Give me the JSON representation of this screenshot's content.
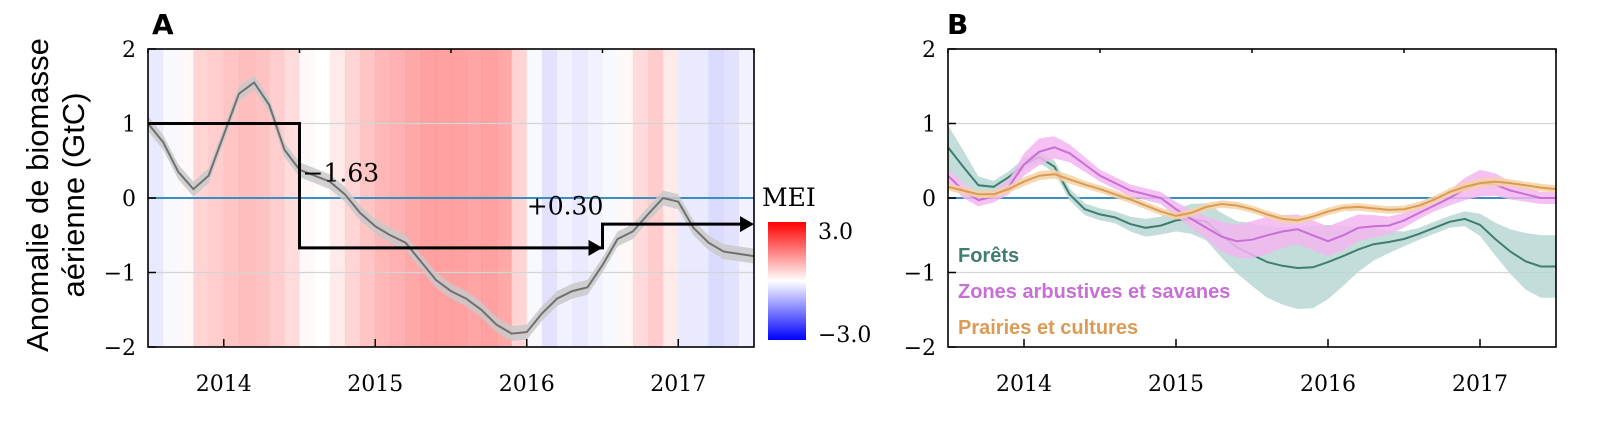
{
  "ylabel_lines": [
    "Anomalie de biomasse",
    "aérienne (GtC)"
  ],
  "colors": {
    "zero_line": "#3a8fc0",
    "total": "#707070",
    "total_band": "#c9c9c9",
    "forests": "#3f7d6f",
    "forests_band": "#b8d8d3",
    "shrub": "#c86fd6",
    "shrub_band": "#f3b6f0",
    "grass": "#dc9b54",
    "grass_band": "#f3d2a5",
    "mei_pos": "#ff0000",
    "mei_neg": "#0000ff"
  },
  "chart_data": [
    {
      "panel": "A",
      "type": "line",
      "xlim": [
        2013.5,
        2017.5
      ],
      "ylim": [
        -2,
        2
      ],
      "yticks": [
        "2",
        "1",
        "0",
        "−1",
        "−2"
      ],
      "xticks": [
        "2014",
        "2015",
        "2016",
        "2017"
      ],
      "series": [
        {
          "x": [
            2013.5,
            2013.6,
            2013.7,
            2013.8,
            2013.9,
            2014.0,
            2014.1,
            2014.2,
            2014.3,
            2014.4,
            2014.5,
            2014.6,
            2014.7,
            2014.8,
            2014.9,
            2015.0,
            2015.1,
            2015.2,
            2015.3,
            2015.4,
            2015.5,
            2015.6,
            2015.7,
            2015.8,
            2015.9,
            2016.0,
            2016.1,
            2016.2,
            2016.3,
            2016.4,
            2016.5,
            2016.6,
            2016.7,
            2016.8,
            2016.9,
            2017.0,
            2017.1,
            2017.2,
            2017.3,
            2017.4,
            2017.5
          ],
          "y": [
            1.0,
            0.75,
            0.35,
            0.12,
            0.3,
            0.85,
            1.4,
            1.55,
            1.25,
            0.65,
            0.38,
            0.3,
            0.22,
            0.05,
            -0.2,
            -0.38,
            -0.5,
            -0.6,
            -0.85,
            -1.1,
            -1.25,
            -1.35,
            -1.5,
            -1.7,
            -1.82,
            -1.8,
            -1.55,
            -1.35,
            -1.25,
            -1.2,
            -0.9,
            -0.55,
            -0.45,
            -0.22,
            0.0,
            -0.05,
            -0.4,
            -0.6,
            -0.72,
            -0.75,
            -0.78
          ],
          "band": 0.1
        }
      ],
      "step": {
        "x": [
          2013.5,
          2014.5,
          2014.5,
          2016.5,
          2016.5,
          2017.45
        ],
        "y": [
          1.0,
          1.0,
          -0.67,
          -0.67,
          -0.35,
          -0.35
        ]
      },
      "annotations": [
        "−1.63",
        "+0.30"
      ],
      "mei": {
        "label": "MEI",
        "max_label": "3.0",
        "min_label": "−3.0",
        "x": [
          2013.55,
          2013.65,
          2013.75,
          2013.85,
          2013.95,
          2014.05,
          2014.15,
          2014.25,
          2014.35,
          2014.45,
          2014.55,
          2014.65,
          2014.75,
          2014.85,
          2014.95,
          2015.05,
          2015.15,
          2015.25,
          2015.35,
          2015.45,
          2015.55,
          2015.65,
          2015.75,
          2015.85,
          2015.95,
          2016.05,
          2016.15,
          2016.25,
          2016.35,
          2016.45,
          2016.55,
          2016.65,
          2016.75,
          2016.85,
          2016.95,
          2017.05,
          2017.15,
          2017.25,
          2017.35,
          2017.45
        ],
        "values": [
          -0.3,
          -0.1,
          0.1,
          0.6,
          0.7,
          0.8,
          0.9,
          0.85,
          0.7,
          0.5,
          0.1,
          0.0,
          0.3,
          0.6,
          0.8,
          1.0,
          1.1,
          1.2,
          1.3,
          1.3,
          1.3,
          1.25,
          1.3,
          1.2,
          0.6,
          -0.1,
          -0.4,
          -0.2,
          -0.3,
          -0.2,
          -0.1,
          0.1,
          0.5,
          0.7,
          0.3,
          -0.3,
          -0.3,
          -0.5,
          -0.4,
          -0.2
        ]
      }
    },
    {
      "panel": "B",
      "type": "line",
      "xlim": [
        2013.5,
        2017.5
      ],
      "ylim": [
        -2,
        2
      ],
      "yticks": [
        "2",
        "1",
        "0",
        "−1",
        "−2"
      ],
      "xticks": [
        "2014",
        "2015",
        "2016",
        "2017"
      ],
      "series": [
        {
          "name": "Forêts",
          "x": [
            2013.5,
            2013.6,
            2013.7,
            2013.8,
            2013.9,
            2014.0,
            2014.1,
            2014.2,
            2014.3,
            2014.4,
            2014.5,
            2014.6,
            2014.7,
            2014.8,
            2014.9,
            2015.0,
            2015.1,
            2015.2,
            2015.3,
            2015.4,
            2015.5,
            2015.6,
            2015.7,
            2015.8,
            2015.9,
            2016.0,
            2016.1,
            2016.2,
            2016.3,
            2016.4,
            2016.5,
            2016.6,
            2016.7,
            2016.8,
            2016.9,
            2017.0,
            2017.1,
            2017.2,
            2017.3,
            2017.4,
            2017.5
          ],
          "y": [
            0.68,
            0.42,
            0.17,
            0.15,
            0.28,
            0.45,
            0.55,
            0.42,
            0.05,
            -0.15,
            -0.22,
            -0.26,
            -0.35,
            -0.4,
            -0.37,
            -0.3,
            -0.28,
            -0.32,
            -0.5,
            -0.66,
            -0.76,
            -0.86,
            -0.91,
            -0.94,
            -0.93,
            -0.86,
            -0.78,
            -0.69,
            -0.62,
            -0.59,
            -0.55,
            -0.48,
            -0.4,
            -0.32,
            -0.28,
            -0.36,
            -0.55,
            -0.72,
            -0.85,
            -0.92,
            -0.92
          ],
          "band": [
            0.3,
            0.22,
            0.12,
            0.08,
            0.08,
            0.08,
            0.08,
            0.08,
            0.08,
            0.08,
            0.08,
            0.08,
            0.1,
            0.12,
            0.12,
            0.15,
            0.2,
            0.25,
            0.3,
            0.35,
            0.42,
            0.48,
            0.52,
            0.55,
            0.55,
            0.5,
            0.4,
            0.3,
            0.22,
            0.15,
            0.1,
            0.08,
            0.08,
            0.08,
            0.1,
            0.15,
            0.22,
            0.3,
            0.38,
            0.42,
            0.42
          ]
        },
        {
          "name": "Zones arbustives et savanes",
          "x": [
            2013.5,
            2013.6,
            2013.7,
            2013.8,
            2013.9,
            2014.0,
            2014.1,
            2014.2,
            2014.3,
            2014.4,
            2014.5,
            2014.6,
            2014.7,
            2014.8,
            2014.9,
            2015.0,
            2015.1,
            2015.2,
            2015.3,
            2015.4,
            2015.5,
            2015.6,
            2015.7,
            2015.8,
            2015.9,
            2016.0,
            2016.1,
            2016.2,
            2016.3,
            2016.4,
            2016.5,
            2016.6,
            2016.7,
            2016.8,
            2016.9,
            2017.0,
            2017.1,
            2017.2,
            2017.3,
            2017.4,
            2017.5
          ],
          "y": [
            0.3,
            0.1,
            -0.03,
            0.02,
            0.15,
            0.45,
            0.62,
            0.68,
            0.6,
            0.45,
            0.3,
            0.2,
            0.1,
            0.05,
            0.0,
            -0.15,
            -0.28,
            -0.4,
            -0.52,
            -0.58,
            -0.56,
            -0.5,
            -0.45,
            -0.42,
            -0.5,
            -0.58,
            -0.5,
            -0.4,
            -0.38,
            -0.37,
            -0.3,
            -0.2,
            -0.1,
            0.0,
            0.12,
            0.2,
            0.18,
            0.1,
            0.05,
            0.0,
            0.0
          ],
          "band": [
            0.1,
            0.1,
            0.08,
            0.08,
            0.1,
            0.15,
            0.18,
            0.15,
            0.12,
            0.1,
            0.08,
            0.08,
            0.08,
            0.08,
            0.08,
            0.1,
            0.12,
            0.15,
            0.2,
            0.22,
            0.25,
            0.25,
            0.22,
            0.2,
            0.2,
            0.2,
            0.2,
            0.18,
            0.15,
            0.12,
            0.1,
            0.08,
            0.08,
            0.1,
            0.15,
            0.18,
            0.15,
            0.12,
            0.1,
            0.08,
            0.08
          ]
        },
        {
          "name": "Prairies et cultures",
          "x": [
            2013.5,
            2013.6,
            2013.7,
            2013.8,
            2013.9,
            2014.0,
            2014.1,
            2014.2,
            2014.3,
            2014.4,
            2014.5,
            2014.6,
            2014.7,
            2014.8,
            2014.9,
            2015.0,
            2015.1,
            2015.2,
            2015.3,
            2015.4,
            2015.5,
            2015.6,
            2015.7,
            2015.8,
            2015.9,
            2016.0,
            2016.1,
            2016.2,
            2016.3,
            2016.4,
            2016.5,
            2016.6,
            2016.7,
            2016.8,
            2016.9,
            2017.0,
            2017.1,
            2017.2,
            2017.3,
            2017.4,
            2017.5
          ],
          "y": [
            0.15,
            0.1,
            0.05,
            0.05,
            0.12,
            0.22,
            0.3,
            0.32,
            0.25,
            0.18,
            0.12,
            0.05,
            -0.02,
            -0.1,
            -0.18,
            -0.24,
            -0.2,
            -0.12,
            -0.08,
            -0.1,
            -0.15,
            -0.22,
            -0.28,
            -0.3,
            -0.25,
            -0.18,
            -0.13,
            -0.12,
            -0.14,
            -0.16,
            -0.15,
            -0.1,
            -0.02,
            0.08,
            0.15,
            0.2,
            0.22,
            0.2,
            0.17,
            0.14,
            0.12
          ],
          "band": [
            0.05,
            0.05,
            0.05,
            0.05,
            0.05,
            0.06,
            0.06,
            0.06,
            0.06,
            0.05,
            0.05,
            0.05,
            0.05,
            0.05,
            0.05,
            0.05,
            0.05,
            0.05,
            0.05,
            0.05,
            0.05,
            0.05,
            0.05,
            0.05,
            0.05,
            0.05,
            0.05,
            0.05,
            0.05,
            0.05,
            0.05,
            0.05,
            0.05,
            0.05,
            0.06,
            0.06,
            0.06,
            0.05,
            0.05,
            0.05,
            0.05
          ]
        }
      ]
    }
  ]
}
